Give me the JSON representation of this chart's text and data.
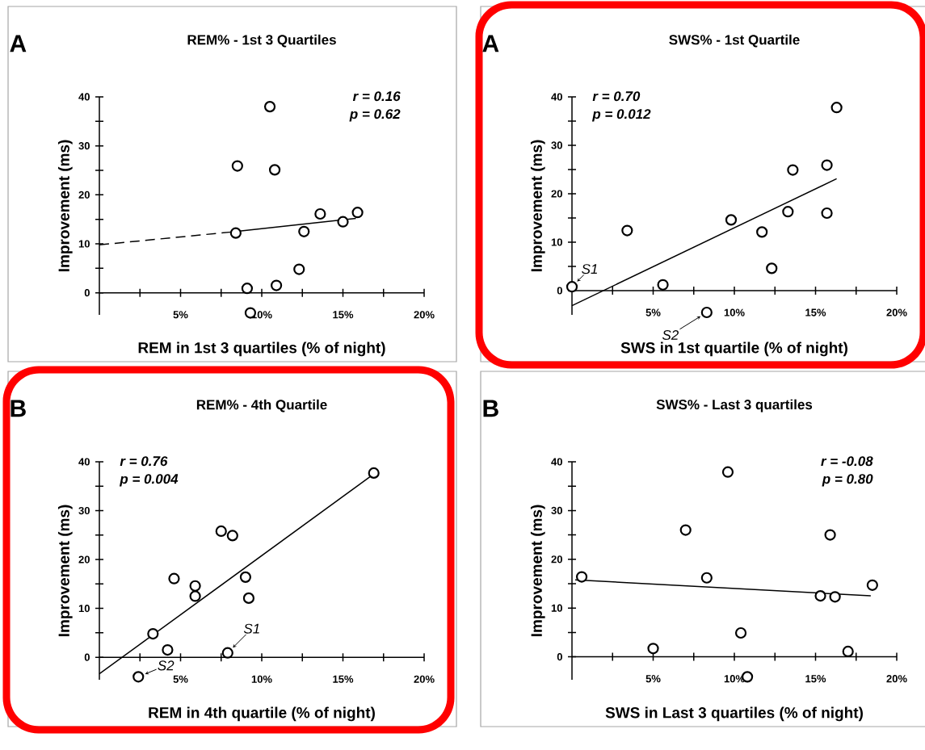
{
  "chart_data": [
    {
      "type": "scatter",
      "title": "REM% - 1st 3 Quartiles",
      "xlabel": "REM in 1st 3 quartiles (% of night)",
      "ylabel": "Improvement  (ms)",
      "annotations": [
        "A",
        "r = 0.16",
        "p = 0.62"
      ],
      "xlim": [
        0,
        20
      ],
      "xticks": [
        {
          "value": 0,
          "label": null
        },
        {
          "value": 2.5,
          "label": null
        },
        {
          "value": 5,
          "label": "5%"
        },
        {
          "value": 7.5,
          "label": null
        },
        {
          "value": 10,
          "label": "10%"
        },
        {
          "value": 12.5,
          "label": null
        },
        {
          "value": 15,
          "label": "15%"
        },
        {
          "value": 17.5,
          "label": null
        },
        {
          "value": 20,
          "label": "20%"
        }
      ],
      "ylim": [
        -4.5,
        40
      ],
      "yticks": [
        0,
        {
          "value": 5,
          "label": null
        },
        10,
        {
          "value": 15,
          "label": null
        },
        20,
        {
          "value": 25,
          "label": null
        },
        30,
        {
          "value": 35,
          "label": null
        },
        40
      ],
      "series": [
        {
          "type": "scatter",
          "marker": "circle",
          "color": "#000000",
          "x": [
            10.5,
            8.5,
            10.8,
            8.4,
            13.6,
            15.0,
            15.9,
            12.6,
            12.3,
            9.1,
            10.9,
            9.3
          ],
          "values": [
            38,
            25.9,
            25.1,
            12.2,
            16.1,
            14.5,
            16.4,
            12.5,
            4.8,
            0.9,
            1.5,
            -4.1
          ]
        },
        {
          "type": "line",
          "marker": "none",
          "line_style": "dashed",
          "color": "#000000",
          "x": [
            0,
            8.4
          ],
          "values": [
            9.8,
            12.5
          ]
        },
        {
          "type": "line",
          "marker": "none",
          "line_style": "solid",
          "color": "#000000",
          "x": [
            8.4,
            15.8
          ],
          "values": [
            12.5,
            15.2
          ]
        }
      ]
    },
    {
      "type": "scatter",
      "title": "SWS% - 1st Quartile",
      "xlabel": "SWS in 1st quartile (% of night)",
      "ylabel": "Improvement  (ms)",
      "annotations": [
        "A",
        "r = 0.70",
        "p = 0.012",
        {
          "text": "S1",
          "x": 0,
          "y": 0.8
        },
        {
          "text": "S2",
          "x": 8.3,
          "y": -4.5
        }
      ],
      "xlim": [
        0,
        20
      ],
      "xticks": [
        {
          "value": 0,
          "label": null
        },
        {
          "value": 2.5,
          "label": null
        },
        {
          "value": 5,
          "label": "5%"
        },
        {
          "value": 7.5,
          "label": null
        },
        {
          "value": 10,
          "label": "10%"
        },
        {
          "value": 12.5,
          "label": null
        },
        {
          "value": 15,
          "label": "15%"
        },
        {
          "value": 17.5,
          "label": null
        },
        {
          "value": 20,
          "label": "20%"
        }
      ],
      "ylim": [
        -5,
        40
      ],
      "yticks": [
        0,
        {
          "value": 5,
          "label": null
        },
        10,
        {
          "value": 15,
          "label": null
        },
        20,
        {
          "value": 25,
          "label": null
        },
        30,
        {
          "value": 35,
          "label": null
        },
        40
      ],
      "series": [
        {
          "type": "scatter",
          "marker": "circle",
          "color": "#000000",
          "x": [
            0,
            3.4,
            5.6,
            8.3,
            9.8,
            11.7,
            12.3,
            13.3,
            13.6,
            15.7,
            15.7,
            16.3
          ],
          "values": [
            0.8,
            12.4,
            1.2,
            -4.5,
            14.6,
            12.1,
            4.6,
            16.3,
            24.9,
            25.9,
            16.0,
            37.8
          ]
        },
        {
          "type": "line",
          "marker": "none",
          "line_style": "solid",
          "color": "#000000",
          "x": [
            0,
            16.3
          ],
          "values": [
            -3.1,
            23.1
          ]
        }
      ]
    },
    {
      "type": "scatter",
      "title": "REM% - 4th Quartile",
      "xlabel": "REM in 4th quartile (% of night)",
      "ylabel": "Improvement  (ms)",
      "annotations": [
        "B",
        "r = 0.76",
        "p = 0.004",
        {
          "text": "S1",
          "x": 7.9,
          "y": 0.9
        },
        {
          "text": "S2",
          "x": 2.4,
          "y": -4.0
        }
      ],
      "xlim": [
        0,
        20
      ],
      "xticks": [
        {
          "value": 0,
          "label": null
        },
        {
          "value": 2.5,
          "label": null
        },
        {
          "value": 5,
          "label": "5%"
        },
        {
          "value": 7.5,
          "label": null
        },
        {
          "value": 10,
          "label": "10%"
        },
        {
          "value": 12.5,
          "label": null
        },
        {
          "value": 15,
          "label": "15%"
        },
        {
          "value": 17.5,
          "label": null
        },
        {
          "value": 20,
          "label": "20%"
        }
      ],
      "ylim": [
        -4.6,
        40
      ],
      "yticks": [
        0,
        {
          "value": 5,
          "label": null
        },
        10,
        {
          "value": 15,
          "label": null
        },
        20,
        {
          "value": 25,
          "label": null
        },
        30,
        {
          "value": 35,
          "label": null
        },
        40
      ],
      "series": [
        {
          "type": "scatter",
          "marker": "circle",
          "color": "#000000",
          "x": [
            16.9,
            7.5,
            8.2,
            4.6,
            5.9,
            5.9,
            9.0,
            9.2,
            3.3,
            4.2,
            7.9,
            2.4
          ],
          "values": [
            37.7,
            25.8,
            24.9,
            16.1,
            14.6,
            12.5,
            16.4,
            12.1,
            4.8,
            1.5,
            0.9,
            -4.0
          ]
        },
        {
          "type": "line",
          "marker": "none",
          "line_style": "solid",
          "color": "#000000",
          "x": [
            0,
            16.9
          ],
          "values": [
            -3.4,
            37.5
          ]
        }
      ]
    },
    {
      "type": "scatter",
      "title": "SWS% - Last 3 quartiles",
      "xlabel": "SWS in Last 3 quartiles (% of night)",
      "ylabel": "Improvement  (ms)",
      "annotations": [
        "B",
        "r = -0.08",
        "p =  0.80"
      ],
      "xlim": [
        0,
        20
      ],
      "xticks": [
        {
          "value": 0,
          "label": null
        },
        {
          "value": 2.5,
          "label": null
        },
        {
          "value": 5,
          "label": "5%"
        },
        {
          "value": 7.5,
          "label": null
        },
        {
          "value": 10,
          "label": "10%"
        },
        {
          "value": 12.5,
          "label": null
        },
        {
          "value": 15,
          "label": "15%"
        },
        {
          "value": 17.5,
          "label": null
        },
        {
          "value": 20,
          "label": "20%"
        }
      ],
      "ylim": [
        -4.7,
        40
      ],
      "yticks": [
        0,
        {
          "value": 5,
          "label": null
        },
        10,
        {
          "value": 15,
          "label": null
        },
        20,
        {
          "value": 25,
          "label": null
        },
        30,
        {
          "value": 35,
          "label": null
        },
        40
      ],
      "series": [
        {
          "type": "scatter",
          "marker": "circle",
          "color": "#000000",
          "x": [
            0.6,
            5.0,
            7.0,
            8.3,
            9.6,
            10.4,
            10.8,
            15.3,
            16.2,
            15.9,
            17.0,
            18.5
          ],
          "values": [
            16.4,
            1.7,
            26.0,
            16.2,
            37.9,
            4.9,
            -4.1,
            12.5,
            12.3,
            25.0,
            1.1,
            14.7
          ]
        },
        {
          "type": "line",
          "marker": "none",
          "line_style": "solid",
          "color": "#000000",
          "x": [
            0.2,
            18.4
          ],
          "values": [
            15.8,
            12.5
          ]
        }
      ]
    }
  ]
}
